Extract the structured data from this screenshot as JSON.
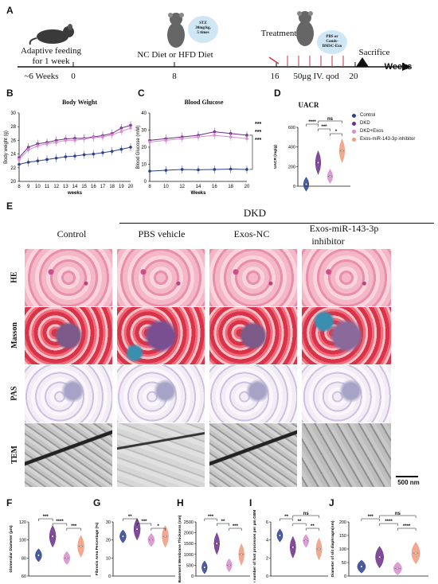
{
  "panel_a": {
    "label": "A",
    "adaptive": [
      "Adaptive feeding",
      "for 1 week"
    ],
    "age": "~6 Weeks",
    "ticks": [
      "0",
      "8",
      "16",
      "20"
    ],
    "diet": "NC Diet  or HFD Diet",
    "treatment": "Treatment",
    "sacrifice": "Sacrifice",
    "dose": "50μg IV. qod",
    "weeks": "Weeks",
    "stz_badge": [
      "STZ",
      "30mg/kg,",
      "5 times"
    ],
    "pbs_badge": [
      "PBS or",
      "Conds-",
      "BMSC-Exo"
    ]
  },
  "panel_b": {
    "label": "B",
    "title": "Body Weight",
    "ylabel": "Body weight (g)",
    "xlabel": "weeks"
  },
  "panel_c": {
    "label": "C",
    "title": "Blood Glucose",
    "ylabel": "Blood Glucose (mM)",
    "xlabel": "Weeks",
    "stars": [
      "***",
      "***",
      "***"
    ]
  },
  "panel_d": {
    "label": "D",
    "title": "UACR",
    "ylabel": "UACR (mg/g)",
    "sig": [
      "ns",
      "****",
      "***",
      "*"
    ]
  },
  "legend": [
    {
      "label": "Control",
      "color": "#2b3f8f"
    },
    {
      "label": "DKD",
      "color": "#6b2d8a"
    },
    {
      "label": "DKD+Exos",
      "color": "#d98bd0"
    },
    {
      "label": "Exos-miR-143-3p inhibitor",
      "color": "#f19a7b"
    }
  ],
  "panel_e": {
    "label": "E",
    "group": "DKD",
    "columns": [
      "Control",
      "PBS vehicle",
      "Exos-NC",
      "Exos-miR-143-3p",
      "inhibitor"
    ],
    "rows": [
      "HE",
      "Masson",
      "PAS",
      "TEM"
    ],
    "scale": "500 nm"
  },
  "bottom_panels": {
    "F": {
      "label": "F",
      "ylabel": "Glomerular Diameter (μm)"
    },
    "G": {
      "label": "G",
      "ylabel": "Fibrosis Area Percentage (%)"
    },
    "H": {
      "label": "H",
      "ylabel": "Basement Membrane Thickness (nm)"
    },
    "I": {
      "label": "I",
      "ylabel": "The number of foot processes per μm GBM"
    },
    "J": {
      "label": "J",
      "ylabel": "Diameter of slit diaphragm(nm)"
    }
  },
  "chart_data": [
    {
      "type": "line",
      "title": "Body Weight",
      "xlabel": "weeks",
      "ylabel": "Body weight (g)",
      "x": [
        8,
        9,
        10,
        11,
        12,
        13,
        14,
        15,
        16,
        17,
        18,
        19,
        20
      ],
      "ylim": [
        20,
        30
      ],
      "yticks": [
        20,
        22,
        24,
        26,
        28,
        30
      ],
      "series": [
        {
          "name": "Control",
          "color": "#2b3f8f",
          "values": [
            22.5,
            22.8,
            23.0,
            23.2,
            23.4,
            23.6,
            23.7,
            23.9,
            24.0,
            24.2,
            24.4,
            24.7,
            25.0
          ]
        },
        {
          "name": "DKD",
          "color": "#6b2d8a",
          "values": [
            23.5,
            25.0,
            25.5,
            25.7,
            26.0,
            26.2,
            26.3,
            26.3,
            26.5,
            26.7,
            27.0,
            27.8,
            28.2
          ]
        },
        {
          "name": "DKD+Exos",
          "color": "#d98bd0",
          "values": [
            23.2,
            24.6,
            25.2,
            25.5,
            25.7,
            26.0,
            26.0,
            26.2,
            26.4,
            26.5,
            26.8,
            27.3,
            27.8
          ]
        }
      ]
    },
    {
      "type": "line",
      "title": "Blood Glucose",
      "xlabel": "Weeks",
      "ylabel": "Blood Glucose (mM)",
      "x": [
        8,
        10,
        12,
        14,
        16,
        18,
        20
      ],
      "ylim": [
        0,
        40
      ],
      "yticks": [
        0,
        10,
        20,
        30,
        40
      ],
      "series": [
        {
          "name": "Control",
          "color": "#2b3f8f",
          "values": [
            6.0,
            6.5,
            7.0,
            6.8,
            7.0,
            7.2,
            7.0
          ]
        },
        {
          "name": "DKD",
          "color": "#6b2d8a",
          "values": [
            24,
            25,
            26,
            27,
            29,
            28,
            27
          ]
        },
        {
          "name": "DKD+Exos",
          "color": "#d98bd0",
          "values": [
            23,
            24,
            25,
            26,
            27,
            26,
            25
          ]
        }
      ]
    },
    {
      "type": "violin",
      "title": "UACR",
      "ylabel": "UACR (mg/g)",
      "ylim": [
        0,
        600
      ],
      "yticks": [
        0,
        200,
        400,
        600
      ],
      "categories": [
        "Control",
        "DKD",
        "DKD+Exos",
        "Exos-miR-143-3p inhibitor"
      ],
      "values": [
        20,
        240,
        100,
        360
      ]
    },
    {
      "type": "violin",
      "ylabel": "Glomerular Diameter (μm)",
      "ylim": [
        60,
        120
      ],
      "yticks": [
        60,
        80,
        100,
        120
      ],
      "categories": [
        "Control",
        "DKD",
        "DKD+Exos",
        "Exos-miR-143-3p inhibitor"
      ],
      "values": [
        83,
        104,
        80,
        93
      ],
      "sig": [
        "***",
        "****",
        "***"
      ]
    },
    {
      "type": "violin",
      "ylabel": "Fibrosis Area Percentage (%)",
      "ylim": [
        0,
        30
      ],
      "yticks": [
        0,
        10,
        20,
        30
      ],
      "categories": [
        "Control",
        "DKD",
        "DKD+Exos",
        "Exos-miR-143-3p inhibitor"
      ],
      "values": [
        22,
        26,
        20,
        22
      ],
      "sig": [
        "**",
        "***",
        "*"
      ]
    },
    {
      "type": "violin",
      "ylabel": "Basement Membrane Thickness (nm)",
      "ylim": [
        0,
        2500
      ],
      "yticks": [
        0,
        500,
        1000,
        1500,
        2000,
        2500
      ],
      "categories": [
        "Control",
        "DKD",
        "DKD+Exos",
        "Exos-miR-143-3p inhibitor"
      ],
      "values": [
        400,
        1500,
        500,
        1000
      ],
      "sig": [
        "***",
        "**",
        "***"
      ]
    },
    {
      "type": "violin",
      "ylabel": "The number of foot processes per μm GBM",
      "ylim": [
        0,
        6
      ],
      "yticks": [
        0,
        2,
        4,
        6
      ],
      "categories": [
        "Control",
        "DKD",
        "DKD+Exos",
        "Exos-miR-143-3p inhibitor"
      ],
      "values": [
        4.5,
        3.2,
        3.9,
        3.0
      ],
      "sig": [
        "**",
        "**",
        "**",
        "ns"
      ]
    },
    {
      "type": "violin",
      "ylabel": "Diameter of slit diaphragm(nm)",
      "ylim": [
        0,
        200
      ],
      "yticks": [
        0,
        50,
        100,
        150,
        200
      ],
      "categories": [
        "Control",
        "DKD",
        "DKD+Exos",
        "Exos-miR-143-3p inhibitor"
      ],
      "values": [
        35,
        70,
        28,
        85
      ],
      "sig": [
        "***",
        "****",
        "****",
        "ns"
      ]
    }
  ]
}
